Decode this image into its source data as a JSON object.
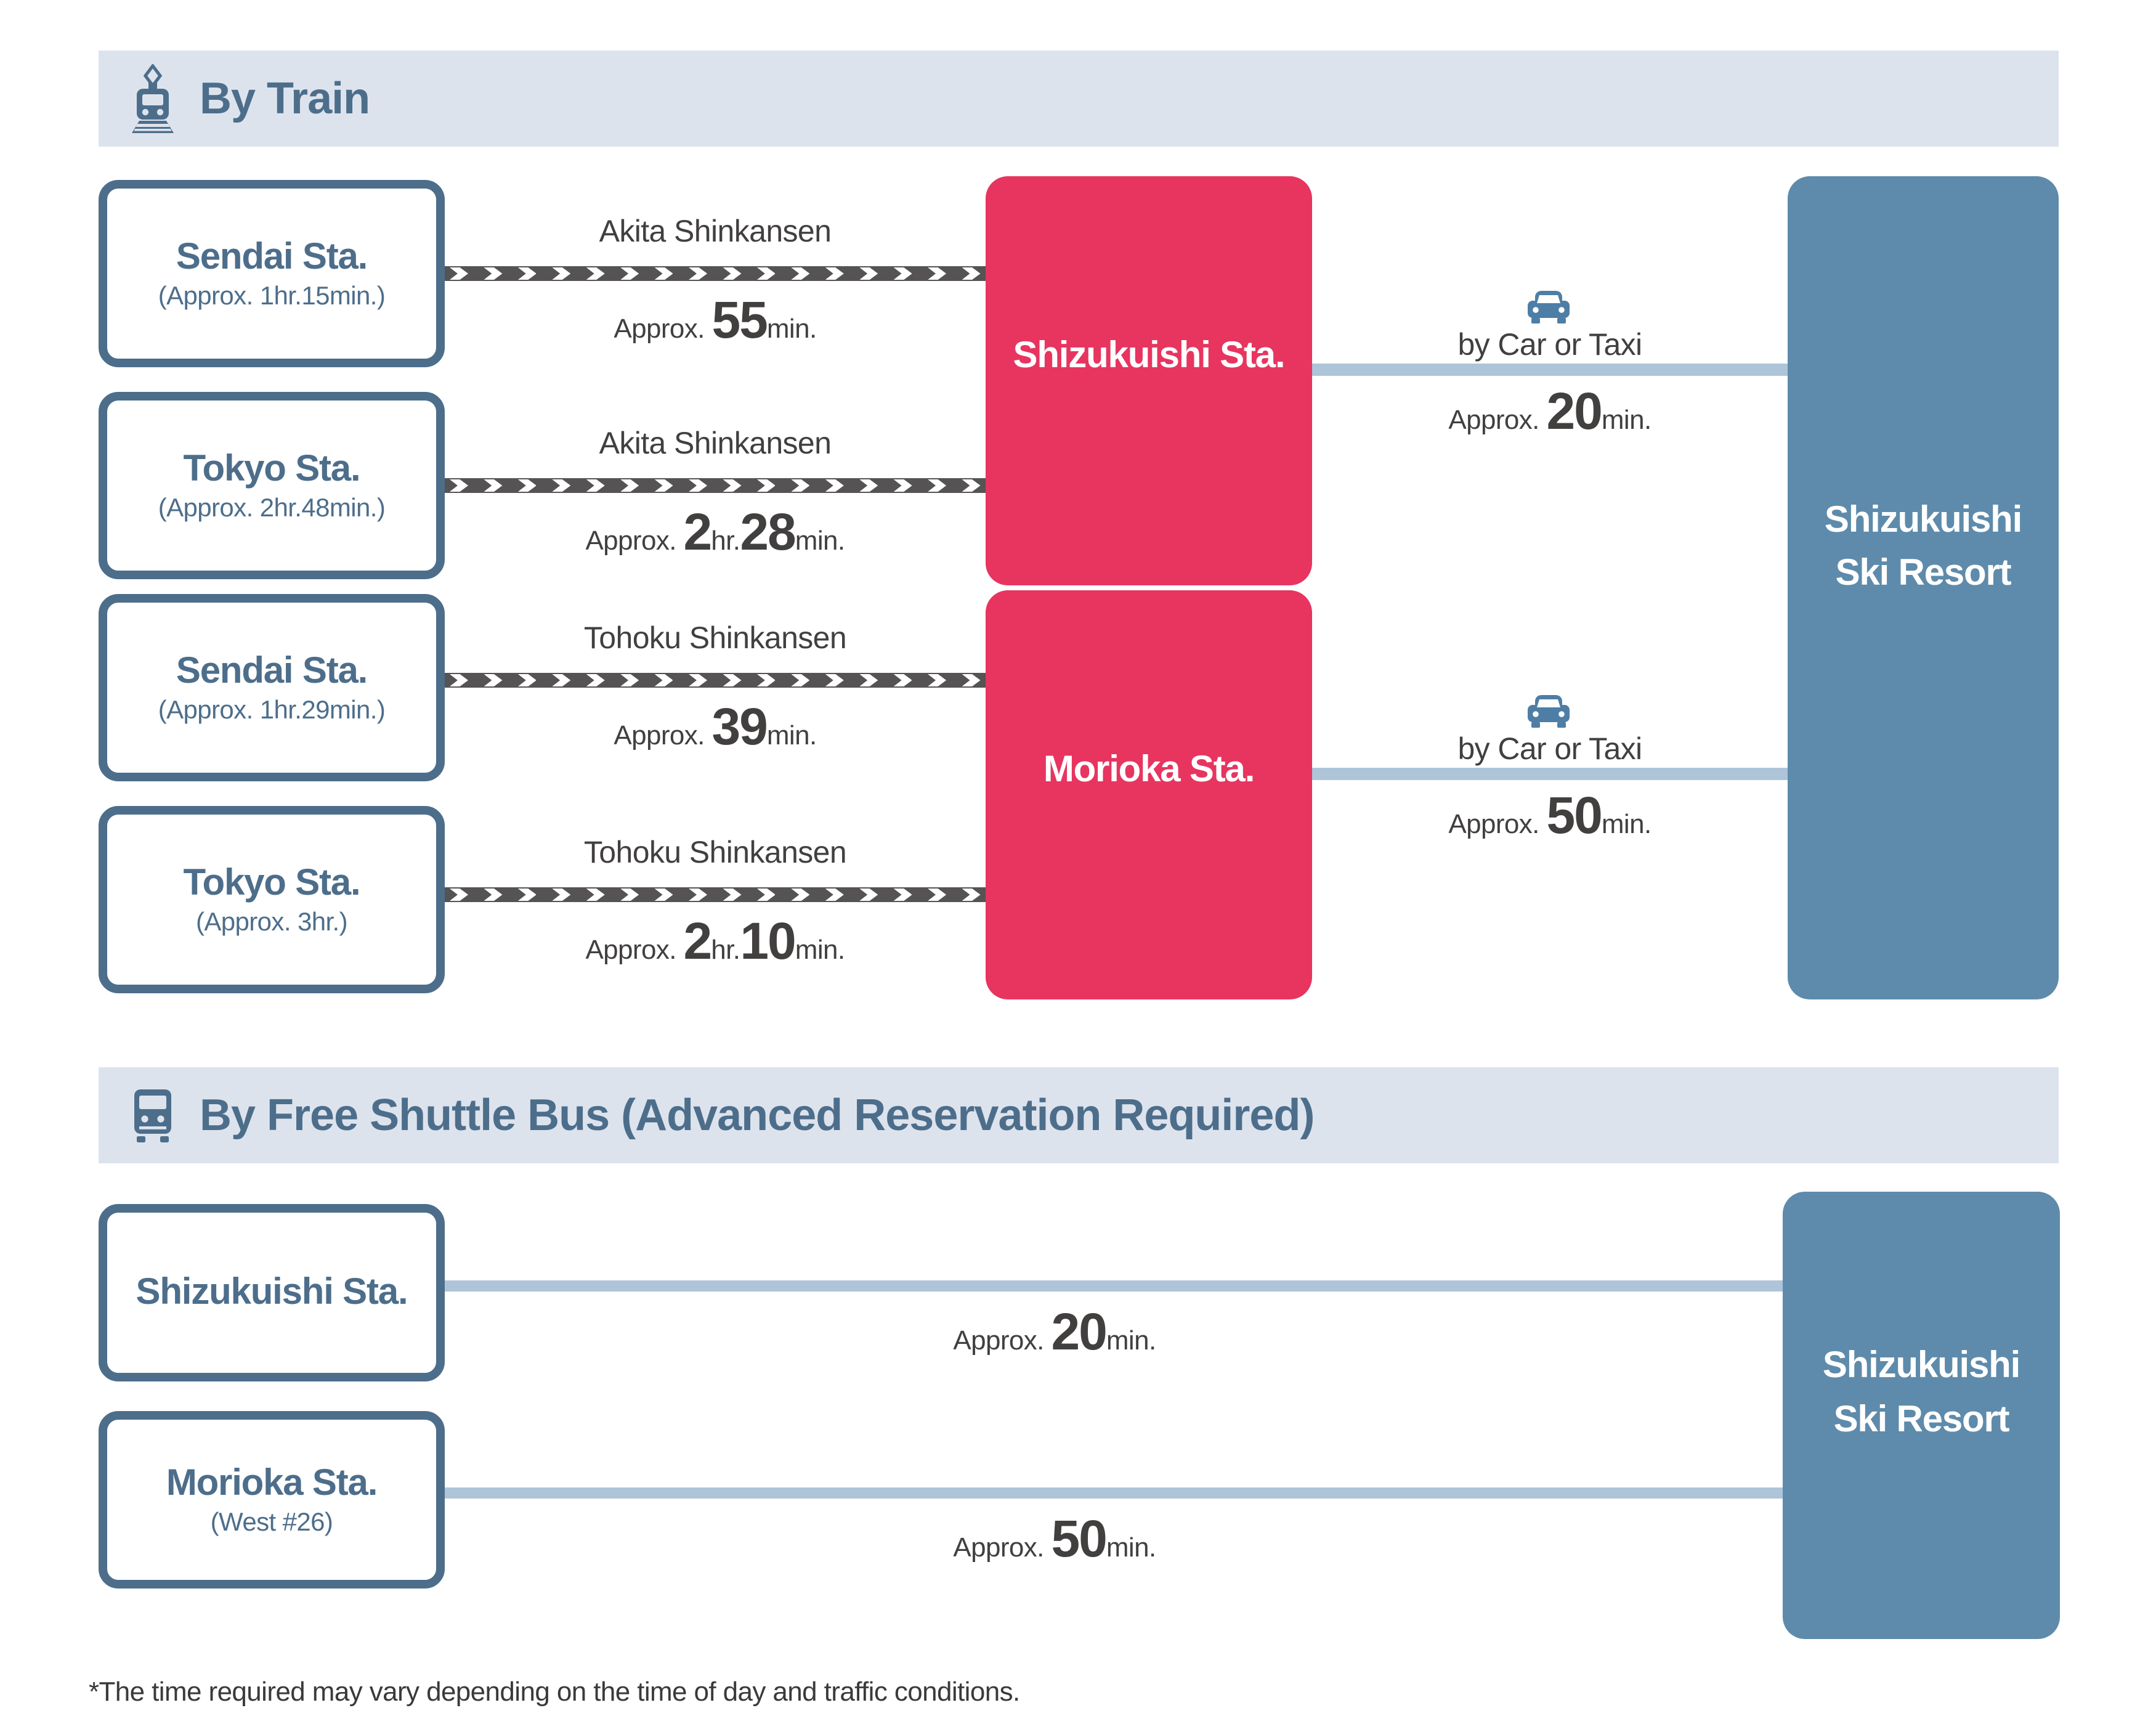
{
  "colors": {
    "slate_blue": "#4d6e8b",
    "header_band_bg": "#dde3ed",
    "hub_pink": "#e73560",
    "resort_steel_blue": "#5e8bab",
    "road_line_blue": "#aec5d9",
    "rail_line_gray": "#565354",
    "label_text": "#423f3f",
    "car_icon_blue": "#4e7ea6"
  },
  "train": {
    "title": "By Train",
    "icon": "train-icon",
    "rows": [
      {
        "station": "Sendai Sta.",
        "note": "(Approx. 1hr.15min.)",
        "line": "Akita Shinkansen",
        "dur": {
          "prefix": "Approx. ",
          "big1": "55",
          "small1": "min."
        }
      },
      {
        "station": "Tokyo Sta.",
        "note": "(Approx. 2hr.48min.)",
        "line": "Akita Shinkansen",
        "dur": {
          "prefix": "Approx. ",
          "big1": "2",
          "small1": "hr.",
          "big2": "28",
          "small2": "min."
        }
      },
      {
        "station": "Sendai Sta.",
        "note": "(Approx. 1hr.29min.)",
        "line": "Tohoku Shinkansen",
        "dur": {
          "prefix": "Approx. ",
          "big1": "39",
          "small1": "min."
        }
      },
      {
        "station": "Tokyo Sta.",
        "note": "(Approx. 3hr.)",
        "line": "Tohoku Shinkansen",
        "dur": {
          "prefix": "Approx. ",
          "big1": "2",
          "small1": "hr.",
          "big2": "10",
          "small2": "min."
        }
      }
    ],
    "hubs": [
      {
        "name": "Shizukuishi Sta."
      },
      {
        "name": "Morioka Sta."
      }
    ],
    "transfers": [
      {
        "icon": "car-icon",
        "label": "by Car or Taxi",
        "dur": {
          "prefix": "Approx. ",
          "big1": "20",
          "small1": "min."
        }
      },
      {
        "icon": "car-icon",
        "label": "by Car or Taxi",
        "dur": {
          "prefix": "Approx. ",
          "big1": "50",
          "small1": "min."
        }
      }
    ],
    "destination": {
      "line1": "Shizukuishi",
      "line2": "Ski Resort"
    }
  },
  "bus": {
    "title": "By Free Shuttle Bus (Advanced Reservation Required)",
    "icon": "bus-icon",
    "rows": [
      {
        "station": "Shizukuishi Sta.",
        "dur": {
          "prefix": "Approx. ",
          "big1": "20",
          "small1": "min."
        }
      },
      {
        "station": "Morioka Sta.",
        "note": "(West #26)",
        "dur": {
          "prefix": "Approx. ",
          "big1": "50",
          "small1": "min."
        }
      }
    ],
    "destination": {
      "line1": "Shizukuishi",
      "line2": "Ski Resort"
    }
  },
  "footnote": "*The time required may vary depending on the time of day and traffic conditions."
}
